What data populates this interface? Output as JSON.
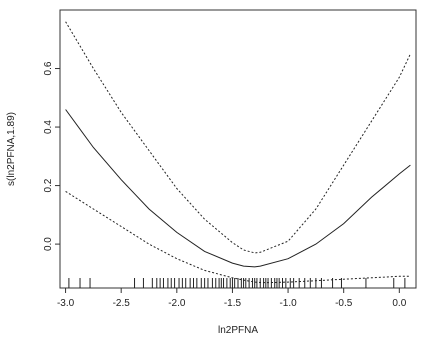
{
  "chart_data": {
    "type": "line",
    "xlabel": "ln2PFNA",
    "ylabel": "s(ln2PFNA,1.89)",
    "xlim": [
      -3.05,
      0.15
    ],
    "ylim": [
      -0.15,
      0.8
    ],
    "x_ticks": [
      -3.0,
      -2.5,
      -2.0,
      -1.5,
      -1.0,
      -0.5,
      0.0
    ],
    "x_tick_labels": [
      "-3.0",
      "-2.5",
      "-2.0",
      "-1.5",
      "-1.0",
      "-0.5",
      "0.0"
    ],
    "y_ticks": [
      0.0,
      0.2,
      0.4,
      0.6
    ],
    "y_tick_labels": [
      "0.0",
      "0.2",
      "0.4",
      "0.6"
    ],
    "series": [
      {
        "style": "solid",
        "x": [
          -3.0,
          -2.75,
          -2.5,
          -2.25,
          -2.0,
          -1.75,
          -1.5,
          -1.4,
          -1.3,
          -1.25,
          -1.0,
          -0.75,
          -0.5,
          -0.25,
          0.0,
          0.1
        ],
        "y": [
          0.46,
          0.33,
          0.22,
          0.12,
          0.04,
          -0.025,
          -0.065,
          -0.075,
          -0.078,
          -0.075,
          -0.05,
          0.0,
          0.07,
          0.16,
          0.24,
          0.27
        ]
      },
      {
        "style": "dotted",
        "x": [
          -3.0,
          -2.75,
          -2.5,
          -2.25,
          -2.0,
          -1.75,
          -1.5,
          -1.4,
          -1.3,
          -1.25,
          -1.0,
          -0.75,
          -0.5,
          -0.25,
          0.0,
          0.1
        ],
        "y": [
          0.76,
          0.6,
          0.45,
          0.32,
          0.19,
          0.085,
          0.005,
          -0.02,
          -0.03,
          -0.028,
          0.01,
          0.12,
          0.27,
          0.42,
          0.57,
          0.65
        ]
      },
      {
        "style": "dotted",
        "x": [
          -3.0,
          -2.75,
          -2.5,
          -2.25,
          -2.0,
          -1.75,
          -1.5,
          -1.4,
          -1.3,
          -1.2,
          -1.0,
          -0.75,
          -0.5,
          -0.25,
          0.0,
          0.1
        ],
        "y": [
          0.18,
          0.12,
          0.06,
          0.0,
          -0.05,
          -0.09,
          -0.115,
          -0.123,
          -0.13,
          -0.132,
          -0.13,
          -0.125,
          -0.12,
          -0.115,
          -0.11,
          -0.11
        ]
      }
    ],
    "rug": [
      -2.97,
      -2.87,
      -2.78,
      -2.38,
      -2.3,
      -2.22,
      -2.18,
      -2.15,
      -2.12,
      -2.08,
      -2.05,
      -2.02,
      -1.98,
      -1.95,
      -1.92,
      -1.88,
      -1.85,
      -1.82,
      -1.78,
      -1.75,
      -1.72,
      -1.68,
      -1.65,
      -1.62,
      -1.6,
      -1.58,
      -1.55,
      -1.52,
      -1.5,
      -1.48,
      -1.45,
      -1.42,
      -1.4,
      -1.38,
      -1.35,
      -1.32,
      -1.3,
      -1.28,
      -1.25,
      -1.22,
      -1.2,
      -1.18,
      -1.15,
      -1.12,
      -1.1,
      -1.08,
      -1.05,
      -1.02,
      -0.98,
      -0.95,
      -0.9,
      -0.85,
      -0.8,
      -0.75,
      -0.7,
      -0.6,
      -0.52,
      -0.3,
      -0.05,
      0.05
    ],
    "grid": false
  }
}
